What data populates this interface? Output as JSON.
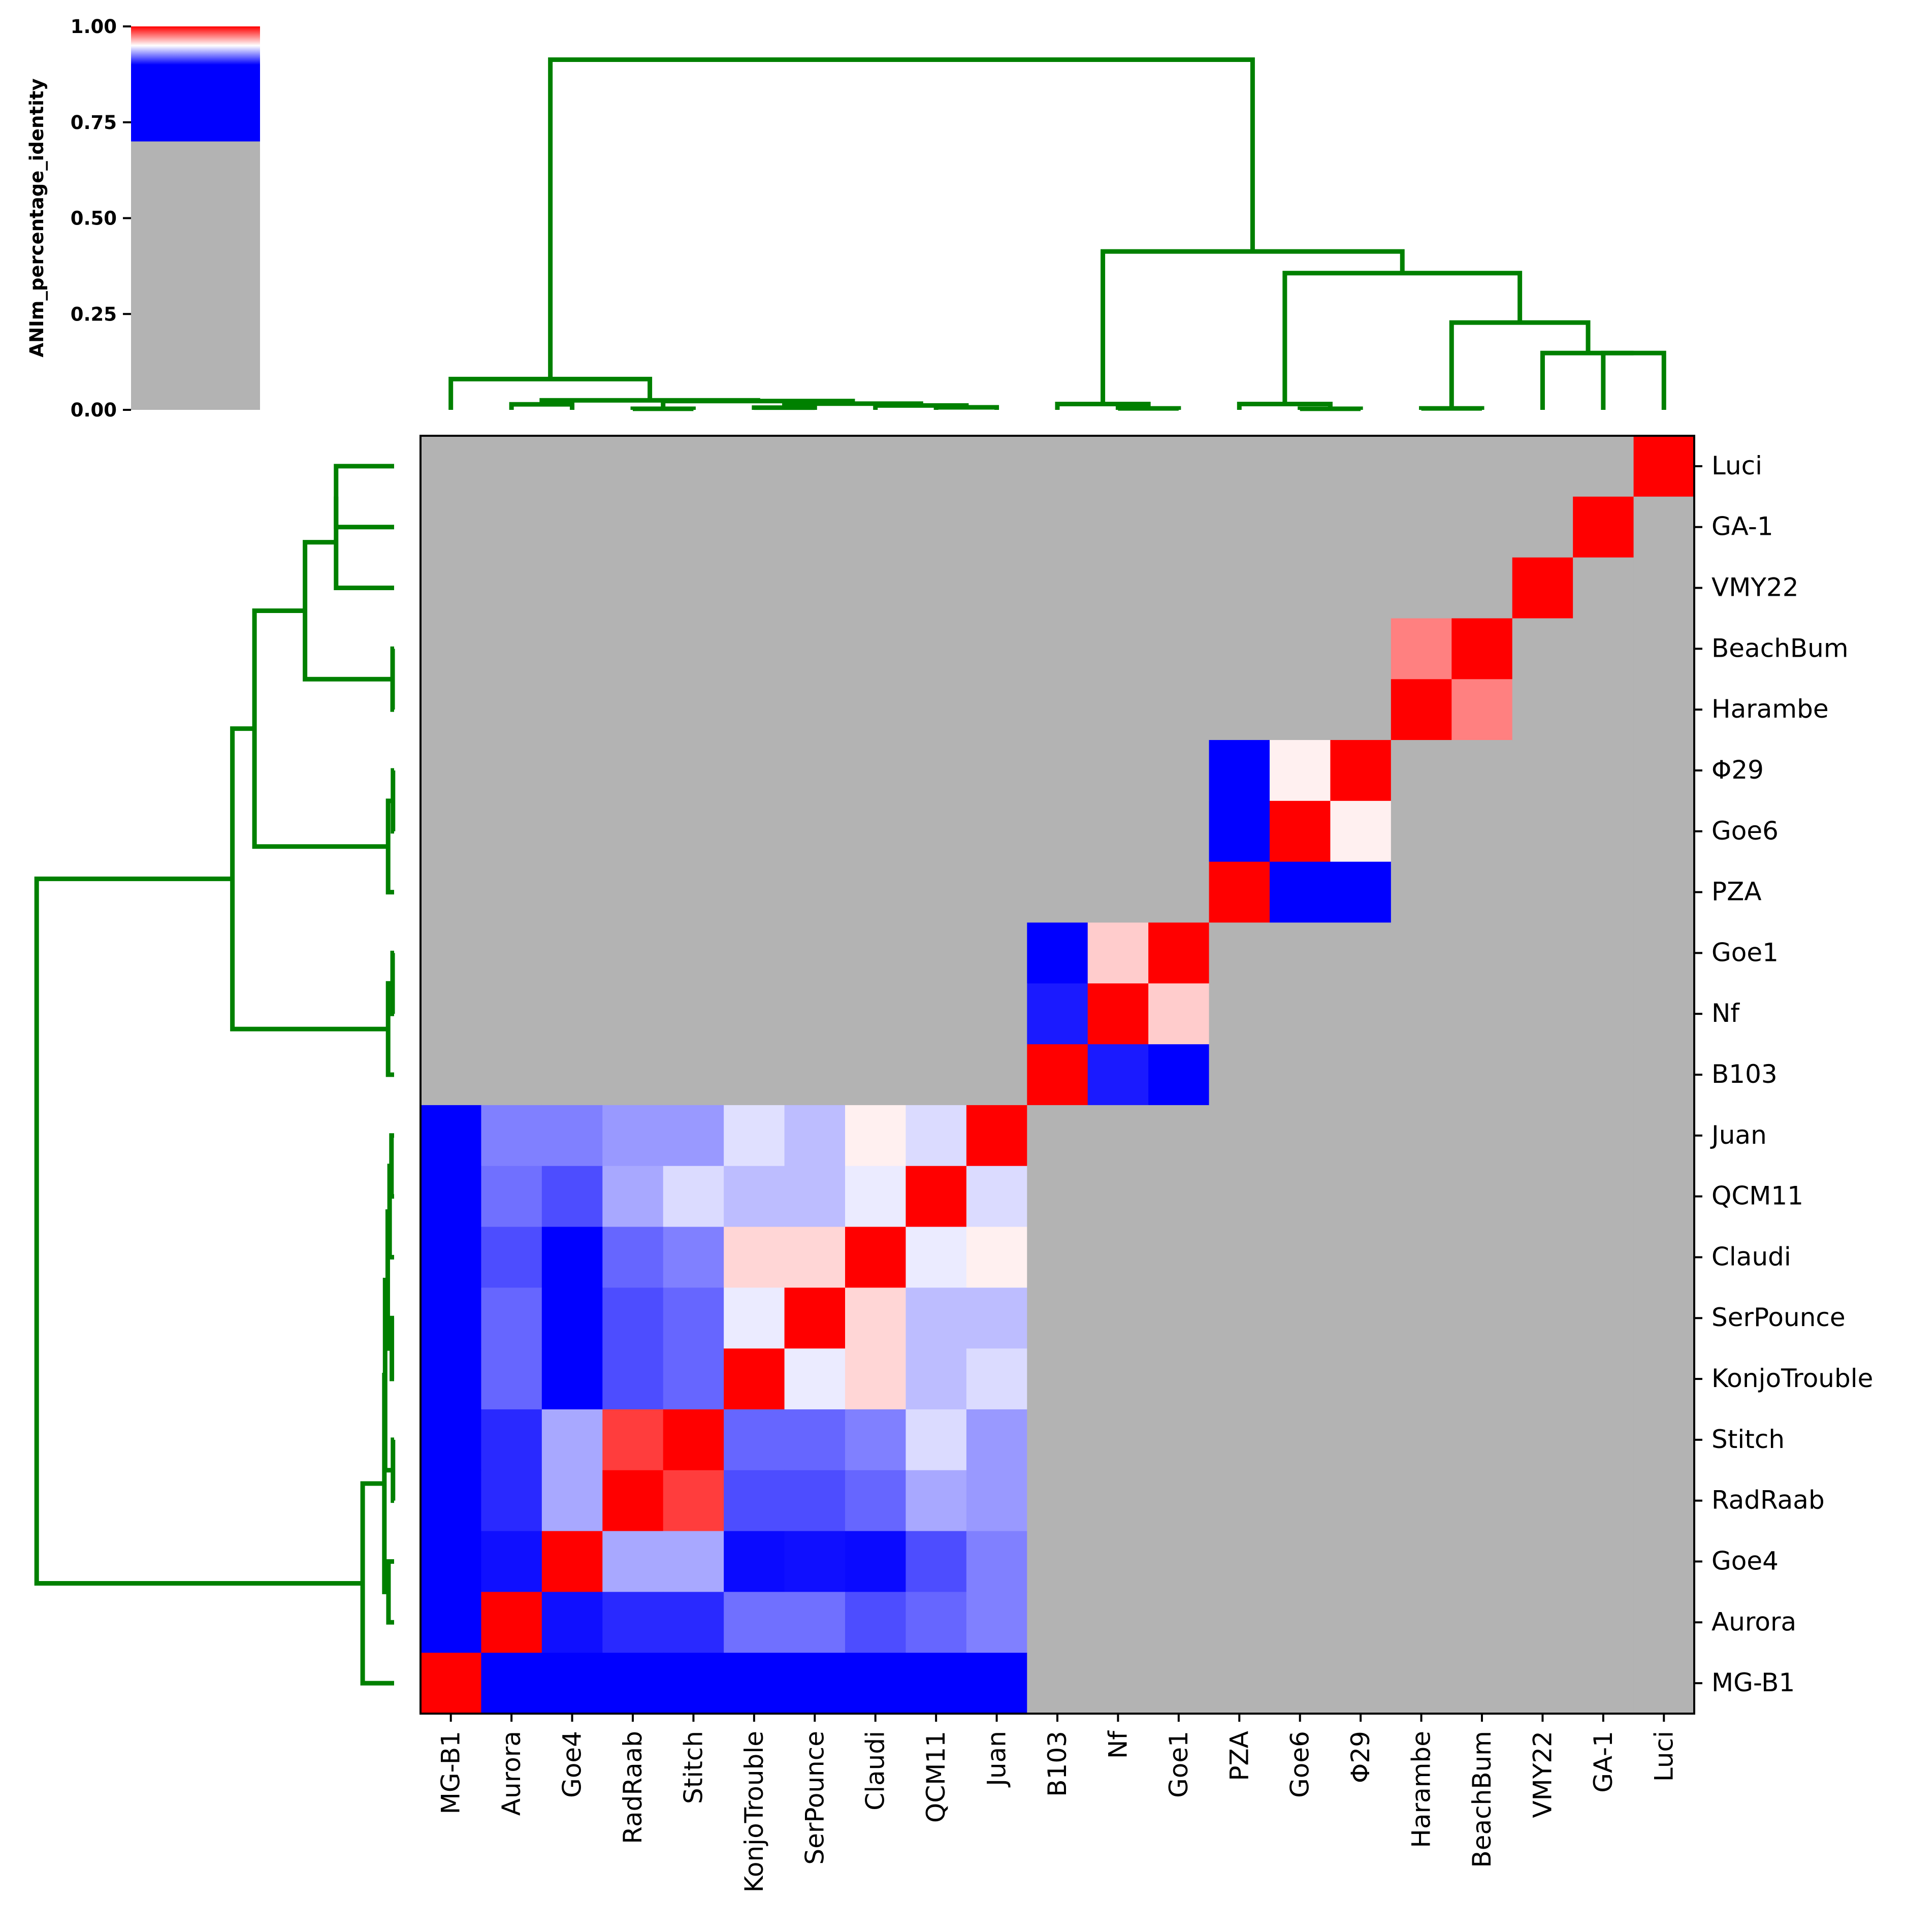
{
  "chart_data": {
    "type": "heatmap",
    "title": "",
    "xlabel": "",
    "ylabel": "",
    "colorbar": {
      "label": "ANIm_percentage_identity",
      "ticks": [
        "0.00",
        "0.25",
        "0.50",
        "0.75",
        "1.00"
      ],
      "tick_values": [
        0,
        0.25,
        0.5,
        0.75,
        1.0
      ],
      "range": [
        0,
        1
      ],
      "grey_below": 0.7,
      "blue_until": 0.9,
      "colors": {
        "low": "#b3b3b3",
        "mid": "#0000ff",
        "center": "#ffffff",
        "high": "#ff0000"
      }
    },
    "col_labels": [
      "MG-B1",
      "Aurora",
      "Goe4",
      "RadRaab",
      "Stitch",
      "KonjoTrouble",
      "SerPounce",
      "Claudi",
      "QCM11",
      "Juan",
      "B103",
      "Nf",
      "Goe1",
      "PZA",
      "Goe6",
      "Φ29",
      "Harambe",
      "BeachBum",
      "VMY22",
      "GA-1",
      "Luci"
    ],
    "row_labels": [
      "Luci",
      "GA-1",
      "VMY22",
      "BeachBum",
      "Harambe",
      "Φ29",
      "Goe6",
      "PZA",
      "Goe1",
      "Nf",
      "B103",
      "Juan",
      "QCM11",
      "Claudi",
      "SerPounce",
      "KonjoTrouble",
      "Stitch",
      "RadRaab",
      "Goe4",
      "Aurora",
      "MG-B1"
    ],
    "values": [
      [
        0.5,
        0.5,
        0.5,
        0.5,
        0.5,
        0.5,
        0.5,
        0.5,
        0.5,
        0.5,
        0.5,
        0.5,
        0.5,
        0.5,
        0.5,
        0.5,
        0.5,
        0.5,
        0.5,
        0.5,
        1.0
      ],
      [
        0.5,
        0.5,
        0.5,
        0.5,
        0.5,
        0.5,
        0.5,
        0.5,
        0.5,
        0.5,
        0.5,
        0.5,
        0.5,
        0.5,
        0.5,
        0.5,
        0.5,
        0.5,
        0.5,
        1.0,
        0.5
      ],
      [
        0.5,
        0.5,
        0.5,
        0.5,
        0.5,
        0.5,
        0.5,
        0.5,
        0.5,
        0.5,
        0.5,
        0.5,
        0.5,
        0.5,
        0.5,
        0.5,
        0.5,
        0.5,
        1.0,
        0.5,
        0.5
      ],
      [
        0.5,
        0.5,
        0.5,
        0.5,
        0.5,
        0.5,
        0.5,
        0.5,
        0.5,
        0.5,
        0.5,
        0.5,
        0.5,
        0.5,
        0.5,
        0.5,
        0.975,
        1.0,
        0.5,
        0.5,
        0.5
      ],
      [
        0.5,
        0.5,
        0.5,
        0.5,
        0.5,
        0.5,
        0.5,
        0.5,
        0.5,
        0.5,
        0.5,
        0.5,
        0.5,
        0.5,
        0.5,
        0.5,
        1.0,
        0.975,
        0.5,
        0.5,
        0.5
      ],
      [
        0.5,
        0.5,
        0.5,
        0.5,
        0.5,
        0.5,
        0.5,
        0.5,
        0.5,
        0.5,
        0.5,
        0.5,
        0.5,
        0.9,
        0.953,
        1.0,
        0.5,
        0.5,
        0.5,
        0.5,
        0.5
      ],
      [
        0.5,
        0.5,
        0.5,
        0.5,
        0.5,
        0.5,
        0.5,
        0.5,
        0.5,
        0.5,
        0.5,
        0.5,
        0.5,
        0.9,
        1.0,
        0.953,
        0.5,
        0.5,
        0.5,
        0.5,
        0.5
      ],
      [
        0.5,
        0.5,
        0.5,
        0.5,
        0.5,
        0.5,
        0.5,
        0.5,
        0.5,
        0.5,
        0.5,
        0.5,
        0.5,
        1.0,
        0.9,
        0.9,
        0.5,
        0.5,
        0.5,
        0.5,
        0.5
      ],
      [
        0.5,
        0.5,
        0.5,
        0.5,
        0.5,
        0.5,
        0.5,
        0.5,
        0.5,
        0.5,
        0.9,
        0.96,
        1.0,
        0.5,
        0.5,
        0.5,
        0.5,
        0.5,
        0.5,
        0.5,
        0.5
      ],
      [
        0.5,
        0.5,
        0.5,
        0.5,
        0.5,
        0.5,
        0.5,
        0.5,
        0.5,
        0.5,
        0.905,
        1.0,
        0.96,
        0.5,
        0.5,
        0.5,
        0.5,
        0.5,
        0.5,
        0.5,
        0.5
      ],
      [
        0.5,
        0.5,
        0.5,
        0.5,
        0.5,
        0.5,
        0.5,
        0.5,
        0.5,
        0.5,
        1.0,
        0.905,
        0.9,
        0.5,
        0.5,
        0.5,
        0.5,
        0.5,
        0.5,
        0.5,
        0.5
      ],
      [
        0.9,
        0.925,
        0.925,
        0.93,
        0.93,
        0.944,
        0.937,
        0.953,
        0.943,
        1.0,
        0.5,
        0.5,
        0.5,
        0.5,
        0.5,
        0.5,
        0.5,
        0.5,
        0.5,
        0.5,
        0.5
      ],
      [
        0.9,
        0.922,
        0.915,
        0.933,
        0.943,
        0.937,
        0.937,
        0.946,
        1.0,
        0.943,
        0.5,
        0.5,
        0.5,
        0.5,
        0.5,
        0.5,
        0.5,
        0.5,
        0.5,
        0.5,
        0.5
      ],
      [
        0.9,
        0.915,
        0.9,
        0.92,
        0.925,
        0.958,
        0.958,
        1.0,
        0.946,
        0.953,
        0.5,
        0.5,
        0.5,
        0.5,
        0.5,
        0.5,
        0.5,
        0.5,
        0.5,
        0.5,
        0.5
      ],
      [
        0.9,
        0.92,
        0.9,
        0.915,
        0.92,
        0.946,
        1.0,
        0.958,
        0.937,
        0.937,
        0.5,
        0.5,
        0.5,
        0.5,
        0.5,
        0.5,
        0.5,
        0.5,
        0.5,
        0.5,
        0.5
      ],
      [
        0.9,
        0.92,
        0.9,
        0.915,
        0.92,
        1.0,
        0.946,
        0.958,
        0.937,
        0.943,
        0.5,
        0.5,
        0.5,
        0.5,
        0.5,
        0.5,
        0.5,
        0.5,
        0.5,
        0.5,
        0.5
      ],
      [
        0.9,
        0.908,
        0.933,
        0.988,
        1.0,
        0.92,
        0.92,
        0.925,
        0.943,
        0.93,
        0.5,
        0.5,
        0.5,
        0.5,
        0.5,
        0.5,
        0.5,
        0.5,
        0.5,
        0.5,
        0.5
      ],
      [
        0.9,
        0.908,
        0.933,
        1.0,
        0.988,
        0.915,
        0.915,
        0.92,
        0.933,
        0.93,
        0.5,
        0.5,
        0.5,
        0.5,
        0.5,
        0.5,
        0.5,
        0.5,
        0.5,
        0.5,
        0.5
      ],
      [
        0.9,
        0.903,
        1.0,
        0.933,
        0.933,
        0.902,
        0.903,
        0.902,
        0.915,
        0.925,
        0.5,
        0.5,
        0.5,
        0.5,
        0.5,
        0.5,
        0.5,
        0.5,
        0.5,
        0.5,
        0.5
      ],
      [
        0.9,
        1.0,
        0.903,
        0.908,
        0.908,
        0.922,
        0.922,
        0.915,
        0.92,
        0.925,
        0.5,
        0.5,
        0.5,
        0.5,
        0.5,
        0.5,
        0.5,
        0.5,
        0.5,
        0.5,
        0.5
      ],
      [
        1.0,
        0.9,
        0.9,
        0.9,
        0.9,
        0.9,
        0.9,
        0.9,
        0.9,
        0.9,
        0.5,
        0.5,
        0.5,
        0.5,
        0.5,
        0.5,
        0.5,
        0.5,
        0.5,
        0.5,
        0.5
      ]
    ],
    "dendrogram": {
      "color": "#008000",
      "merges": [
        {
          "a": "Aurora",
          "b": "Goe4",
          "height": 0.015
        },
        {
          "a": "RadRaab",
          "b": "Stitch",
          "height": 0.003
        },
        {
          "a": "KonjoTrouble",
          "b": "SerPounce",
          "height": 0.006
        },
        {
          "a": "QCM11",
          "b": "Juan",
          "height": 0.007
        },
        {
          "a": "Claudi",
          "b": [
            "QCM11",
            "Juan"
          ],
          "height": 0.012
        },
        {
          "a": [
            "KonjoTrouble",
            "SerPounce"
          ],
          "b": [
            "Claudi",
            "QCM11",
            "Juan"
          ],
          "height": 0.017
        },
        {
          "a": [
            "RadRaab",
            "Stitch"
          ],
          "b": [
            "KonjoTrouble",
            "SerPounce",
            "Claudi",
            "QCM11",
            "Juan"
          ],
          "height": 0.024
        },
        {
          "a": [
            "Aurora",
            "Goe4"
          ],
          "b": [
            "RadRaab",
            "Stitch",
            "KonjoTrouble",
            "SerPounce",
            "Claudi",
            "QCM11",
            "Juan"
          ],
          "height": 0.026
        },
        {
          "a": "MG-B1",
          "b": [
            "Aurora",
            "Goe4",
            "RadRaab",
            "Stitch",
            "KonjoTrouble",
            "SerPounce",
            "Claudi",
            "QCM11",
            "Juan"
          ],
          "height": 0.084
        },
        {
          "a": "Nf",
          "b": "Goe1",
          "height": 0.004
        },
        {
          "a": "B103",
          "b": [
            "Nf",
            "Goe1"
          ],
          "height": 0.016
        },
        {
          "a": "Goe6",
          "b": "Φ29",
          "height": 0.003
        },
        {
          "a": "PZA",
          "b": [
            "Goe6",
            "Φ29"
          ],
          "height": 0.016
        },
        {
          "a": "Harambe",
          "b": "BeachBum",
          "height": 0.004
        },
        {
          "a": "GA-1",
          "b": "Luci",
          "height": 0.155
        },
        {
          "a": "VMY22",
          "b": [
            "GA-1",
            "Luci"
          ],
          "height": 0.155
        },
        {
          "a": [
            "Harambe",
            "BeachBum"
          ],
          "b": [
            "VMY22",
            "GA-1",
            "Luci"
          ],
          "height": 0.238
        },
        {
          "a": [
            "PZA",
            "Goe6",
            "Φ29"
          ],
          "b": [
            "Harambe",
            "BeachBum",
            "VMY22",
            "GA-1",
            "Luci"
          ],
          "height": 0.373
        },
        {
          "a": [
            "B103",
            "Nf",
            "Goe1"
          ],
          "b": [
            "PZA",
            "Goe6",
            "Φ29",
            "Harambe",
            "BeachBum",
            "VMY22",
            "GA-1",
            "Luci"
          ],
          "height": 0.432
        },
        {
          "a": [
            "MG-B1",
            "Aurora",
            "Goe4",
            "RadRaab",
            "Stitch",
            "KonjoTrouble",
            "SerPounce",
            "Claudi",
            "QCM11",
            "Juan"
          ],
          "b": [
            "B103",
            "Nf",
            "Goe1",
            "PZA",
            "Goe6",
            "Φ29",
            "Harambe",
            "BeachBum",
            "VMY22",
            "GA-1",
            "Luci"
          ],
          "height": 0.955
        }
      ]
    }
  }
}
